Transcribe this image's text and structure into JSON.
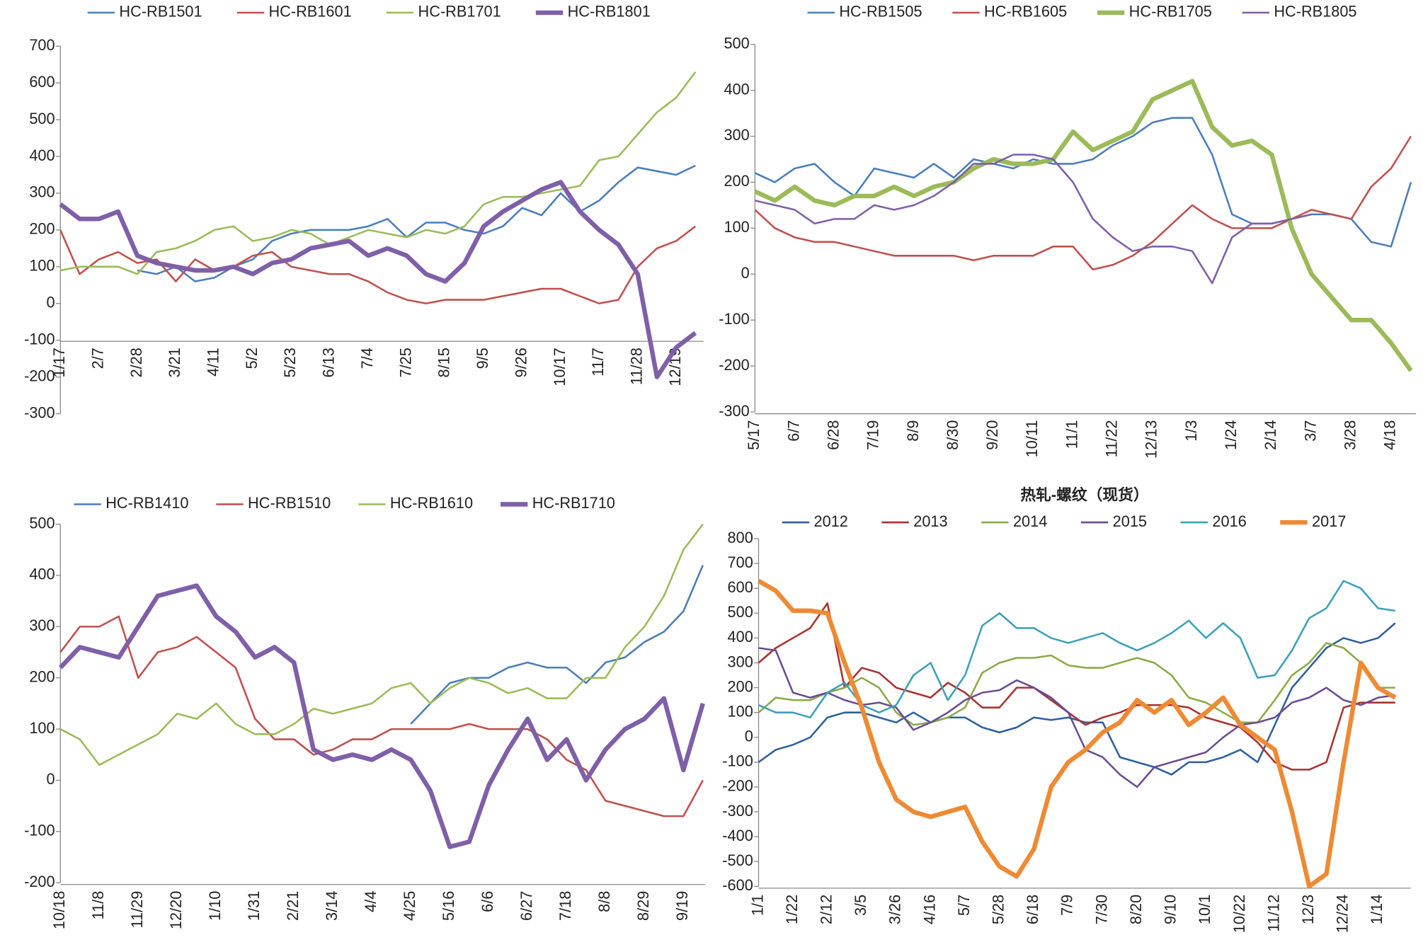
{
  "chart_data": [
    {
      "type": "line",
      "categories": [
        "1/17",
        null,
        "2/7",
        null,
        "2/28",
        null,
        "3/21",
        null,
        "4/11",
        null,
        "5/2",
        null,
        "5/23",
        null,
        "6/13",
        null,
        "7/4",
        null,
        "7/25",
        null,
        "8/15",
        null,
        "9/5",
        null,
        "9/26",
        null,
        "10/17",
        null,
        "11/7",
        null,
        "11/28",
        null,
        "12/19",
        null
      ],
      "series": [
        {
          "name": "HC-RB1501",
          "color": "#4a7ebb",
          "width": 2,
          "values": [
            null,
            null,
            null,
            null,
            90,
            80,
            100,
            60,
            70,
            100,
            120,
            170,
            190,
            200,
            200,
            200,
            210,
            230,
            180,
            220,
            220,
            200,
            190,
            210,
            260,
            240,
            300,
            250,
            280,
            330,
            370,
            360,
            350,
            375
          ]
        },
        {
          "name": "HC-RB1601",
          "color": "#c0504d",
          "width": 2,
          "values": [
            200,
            80,
            120,
            140,
            110,
            120,
            60,
            120,
            90,
            100,
            130,
            140,
            100,
            90,
            80,
            80,
            60,
            30,
            10,
            0,
            10,
            10,
            10,
            20,
            30,
            40,
            40,
            20,
            0,
            10,
            100,
            150,
            170,
            210
          ]
        },
        {
          "name": "HC-RB1701",
          "color": "#9bbb59",
          "width": 2,
          "values": [
            90,
            100,
            100,
            100,
            80,
            140,
            150,
            170,
            200,
            210,
            170,
            180,
            200,
            190,
            160,
            180,
            200,
            190,
            180,
            200,
            190,
            210,
            270,
            290,
            290,
            300,
            310,
            320,
            390,
            400,
            460,
            520,
            560,
            630
          ]
        },
        {
          "name": "HC-RB1801",
          "color": "#7f5fa8",
          "width": 5,
          "values": [
            270,
            230,
            230,
            250,
            130,
            110,
            100,
            90,
            90,
            100,
            80,
            110,
            120,
            150,
            160,
            170,
            130,
            150,
            130,
            80,
            60,
            110,
            210,
            250,
            280,
            310,
            330,
            250,
            200,
            160,
            80,
            -200,
            -120,
            -80
          ]
        }
      ],
      "ylim": [
        -300,
        700
      ],
      "yticks": [
        -300,
        -200,
        -100,
        0,
        100,
        200,
        300,
        400,
        500,
        600,
        700
      ],
      "grid": false
    },
    {
      "type": "line",
      "categories": [
        "5/17",
        null,
        "6/7",
        null,
        "6/28",
        null,
        "7/19",
        null,
        "8/9",
        null,
        "8/30",
        null,
        "9/20",
        null,
        "10/11",
        null,
        "11/1",
        null,
        "11/22",
        null,
        "12/13",
        null,
        "1/3",
        null,
        "1/24",
        null,
        "2/14",
        null,
        "3/7",
        null,
        "3/28",
        null,
        "4/18",
        null
      ],
      "series": [
        {
          "name": "HC-RB1505",
          "color": "#4a7ebb",
          "width": 2,
          "values": [
            220,
            200,
            230,
            240,
            200,
            170,
            230,
            220,
            210,
            240,
            210,
            250,
            240,
            230,
            250,
            240,
            240,
            250,
            280,
            300,
            330,
            340,
            340,
            260,
            130,
            110,
            110,
            120,
            130,
            130,
            120,
            70,
            60,
            200
          ]
        },
        {
          "name": "HC-RB1605",
          "color": "#c0504d",
          "width": 2,
          "values": [
            140,
            100,
            80,
            70,
            70,
            60,
            50,
            40,
            40,
            40,
            40,
            30,
            40,
            40,
            40,
            60,
            60,
            10,
            20,
            40,
            70,
            110,
            150,
            120,
            100,
            100,
            100,
            120,
            140,
            130,
            120,
            190,
            230,
            300
          ]
        },
        {
          "name": "HC-RB1705",
          "color": "#9bbb59",
          "width": 5,
          "values": [
            180,
            160,
            190,
            160,
            150,
            170,
            170,
            190,
            170,
            190,
            200,
            230,
            250,
            240,
            240,
            250,
            310,
            270,
            290,
            310,
            380,
            400,
            420,
            320,
            280,
            290,
            260,
            100,
            0,
            -50,
            -100,
            -100,
            -150,
            -210
          ]
        },
        {
          "name": "HC-RB1805",
          "color": "#7f5fa8",
          "width": 2,
          "values": [
            160,
            150,
            140,
            110,
            120,
            120,
            150,
            140,
            150,
            170,
            200,
            240,
            240,
            260,
            260,
            250,
            200,
            120,
            80,
            50,
            60,
            60,
            50,
            -20,
            80,
            110,
            110,
            120,
            130,
            null,
            null,
            null,
            null,
            null
          ]
        }
      ],
      "ylim": [
        -300,
        500
      ],
      "yticks": [
        -300,
        -200,
        -100,
        0,
        100,
        200,
        300,
        400,
        500
      ],
      "grid": false
    },
    {
      "type": "line",
      "categories": [
        "10/18",
        null,
        "11/8",
        null,
        "11/29",
        null,
        "12/20",
        null,
        "1/10",
        null,
        "1/31",
        null,
        "2/21",
        null,
        "3/14",
        null,
        "4/4",
        null,
        "4/25",
        null,
        "5/16",
        null,
        "6/6",
        null,
        "6/27",
        null,
        "7/18",
        null,
        "8/8",
        null,
        "8/29",
        null,
        "9/19",
        null
      ],
      "series": [
        {
          "name": "HC-RB1410",
          "color": "#4a7ebb",
          "width": 2,
          "values": [
            null,
            null,
            null,
            null,
            null,
            null,
            null,
            null,
            null,
            null,
            null,
            null,
            null,
            null,
            null,
            null,
            null,
            null,
            110,
            150,
            190,
            200,
            200,
            220,
            230,
            220,
            220,
            190,
            230,
            240,
            270,
            290,
            330,
            420
          ]
        },
        {
          "name": "HC-RB1510",
          "color": "#c0504d",
          "width": 2,
          "values": [
            250,
            300,
            300,
            320,
            200,
            250,
            260,
            280,
            250,
            220,
            120,
            80,
            80,
            50,
            60,
            80,
            80,
            100,
            100,
            100,
            100,
            110,
            100,
            100,
            100,
            80,
            40,
            20,
            -40,
            -50,
            -60,
            -70,
            -70,
            0
          ]
        },
        {
          "name": "HC-RB1610",
          "color": "#9bbb59",
          "width": 2,
          "values": [
            100,
            80,
            30,
            50,
            70,
            90,
            130,
            120,
            150,
            110,
            90,
            90,
            110,
            140,
            130,
            140,
            150,
            180,
            190,
            150,
            180,
            200,
            190,
            170,
            180,
            160,
            160,
            200,
            200,
            260,
            300,
            360,
            450,
            500
          ]
        },
        {
          "name": "HC-RB1710",
          "color": "#7f5fa8",
          "width": 5,
          "values": [
            220,
            260,
            250,
            240,
            300,
            360,
            370,
            380,
            320,
            290,
            240,
            260,
            230,
            60,
            40,
            50,
            40,
            60,
            40,
            -20,
            -130,
            -120,
            -10,
            60,
            120,
            40,
            80,
            0,
            60,
            100,
            120,
            160,
            20,
            150
          ]
        }
      ],
      "ylim": [
        -200,
        500
      ],
      "yticks": [
        -200,
        -100,
        0,
        100,
        200,
        300,
        400,
        500
      ],
      "grid": false
    },
    {
      "type": "line",
      "title": "热轧-螺纹（现货）",
      "categories": [
        "1/1",
        null,
        "1/22",
        null,
        "2/12",
        null,
        "3/5",
        null,
        "3/26",
        null,
        "4/16",
        null,
        "5/7",
        null,
        "5/28",
        null,
        "6/18",
        null,
        "7/9",
        null,
        "7/30",
        null,
        "8/20",
        null,
        "9/10",
        null,
        "10/1",
        null,
        "10/22",
        null,
        "11/12",
        null,
        "12/3",
        null,
        "12/24",
        null,
        "1/14",
        null
      ],
      "series": [
        {
          "name": "2012",
          "color": "#2f5f9e",
          "width": 2,
          "values": [
            -100,
            -50,
            -30,
            0,
            80,
            100,
            100,
            80,
            60,
            100,
            60,
            80,
            80,
            40,
            20,
            40,
            80,
            70,
            80,
            60,
            60,
            -80,
            -100,
            -120,
            -150,
            -100,
            -100,
            -80,
            -50,
            -100,
            50,
            200,
            280,
            360,
            400,
            380,
            400,
            460
          ]
        },
        {
          "name": "2013",
          "color": "#a8332f",
          "width": 2,
          "values": [
            300,
            360,
            400,
            440,
            540,
            200,
            280,
            260,
            200,
            180,
            160,
            220,
            180,
            120,
            120,
            200,
            200,
            150,
            100,
            50,
            80,
            100,
            130,
            130,
            130,
            120,
            80,
            60,
            40,
            -20,
            -100,
            -130,
            -130,
            -100,
            120,
            140,
            140,
            140
          ]
        },
        {
          "name": "2014",
          "color": "#8aab47",
          "width": 2,
          "values": [
            100,
            160,
            150,
            150,
            180,
            200,
            240,
            200,
            100,
            50,
            60,
            80,
            120,
            260,
            300,
            320,
            320,
            330,
            290,
            280,
            280,
            300,
            320,
            300,
            250,
            160,
            140,
            100,
            60,
            60,
            150,
            250,
            300,
            380,
            360,
            300,
            200,
            200
          ]
        },
        {
          "name": "2015",
          "color": "#6b4c92",
          "width": 2,
          "values": [
            360,
            350,
            180,
            160,
            180,
            150,
            130,
            140,
            120,
            30,
            60,
            100,
            150,
            180,
            190,
            230,
            200,
            160,
            100,
            -50,
            -80,
            -150,
            -200,
            -120,
            -100,
            -80,
            -60,
            0,
            50,
            60,
            80,
            140,
            160,
            200,
            150,
            130,
            160,
            170
          ]
        },
        {
          "name": "2016",
          "color": "#3ea0b8",
          "width": 2,
          "values": [
            130,
            100,
            100,
            80,
            180,
            220,
            130,
            100,
            130,
            250,
            300,
            150,
            250,
            450,
            500,
            440,
            440,
            400,
            380,
            400,
            420,
            380,
            350,
            380,
            420,
            470,
            400,
            460,
            400,
            240,
            250,
            350,
            480,
            520,
            630,
            600,
            520,
            510
          ]
        },
        {
          "name": "2017",
          "color": "#ee8a33",
          "width": 5,
          "values": [
            630,
            590,
            510,
            510,
            500,
            300,
            120,
            -100,
            -250,
            -300,
            -320,
            -300,
            -280,
            -420,
            -520,
            -560,
            -450,
            -200,
            -100,
            -50,
            20,
            60,
            150,
            100,
            150,
            50,
            100,
            160,
            50,
            0,
            -50,
            -300,
            -600,
            -550,
            -100,
            300,
            200,
            160
          ]
        }
      ],
      "ylim": [
        -600,
        800
      ],
      "yticks": [
        -600,
        -500,
        -400,
        -300,
        -200,
        -100,
        0,
        100,
        200,
        300,
        400,
        500,
        600,
        700,
        800
      ],
      "grid": false
    }
  ]
}
